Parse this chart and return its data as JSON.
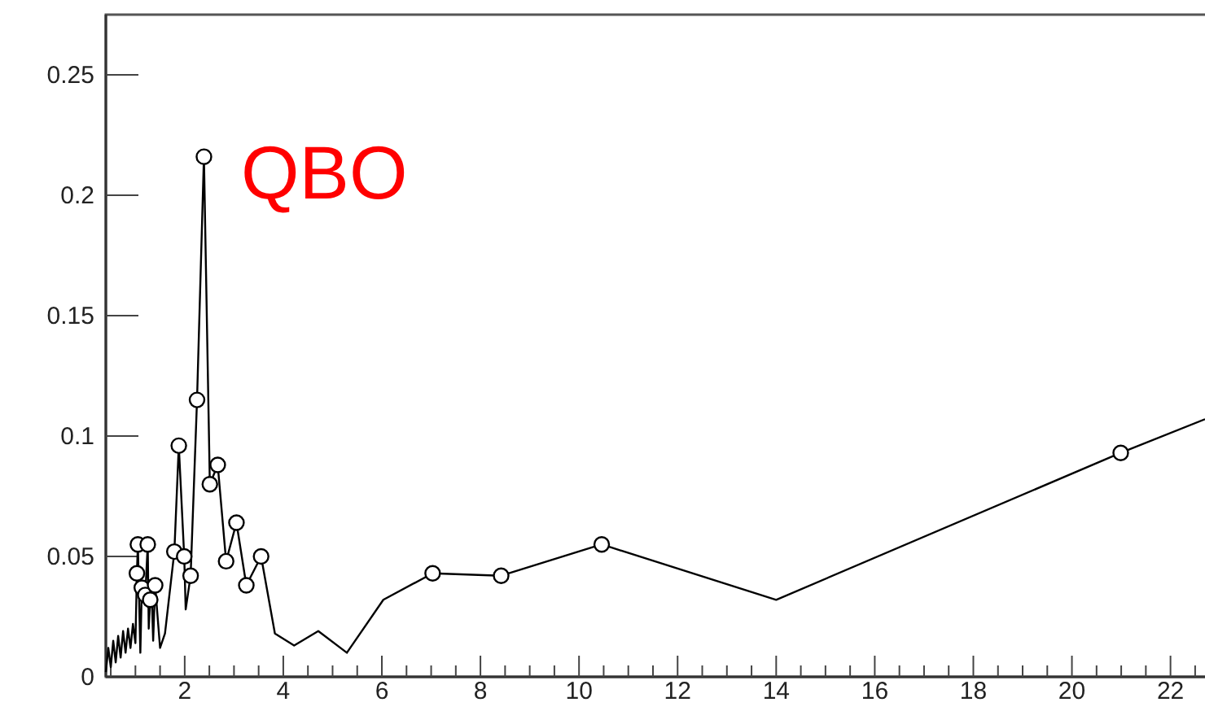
{
  "chart_data": {
    "type": "line",
    "annotations": [
      "QBO"
    ],
    "xlim": [
      0.4,
      22.7
    ],
    "ylim": [
      0,
      0.275
    ],
    "xticks": [
      {
        "value": 0.5,
        "label": null
      },
      {
        "value": 1,
        "label": null
      },
      {
        "value": 1.5,
        "label": null
      },
      2,
      {
        "value": 2.5,
        "label": null
      },
      {
        "value": 3,
        "label": null
      },
      {
        "value": 3.5,
        "label": null
      },
      4,
      {
        "value": 4.5,
        "label": null
      },
      {
        "value": 5,
        "label": null
      },
      {
        "value": 5.5,
        "label": null
      },
      6,
      {
        "value": 6.5,
        "label": null
      },
      {
        "value": 7,
        "label": null
      },
      {
        "value": 7.5,
        "label": null
      },
      8,
      {
        "value": 8.5,
        "label": null
      },
      {
        "value": 9,
        "label": null
      },
      {
        "value": 9.5,
        "label": null
      },
      10,
      {
        "value": 10.5,
        "label": null
      },
      {
        "value": 11,
        "label": null
      },
      {
        "value": 11.5,
        "label": null
      },
      12,
      {
        "value": 12.5,
        "label": null
      },
      {
        "value": 13,
        "label": null
      },
      {
        "value": 13.5,
        "label": null
      },
      14,
      {
        "value": 14.5,
        "label": null
      },
      {
        "value": 15,
        "label": null
      },
      {
        "value": 15.5,
        "label": null
      },
      16,
      {
        "value": 16.5,
        "label": null
      },
      {
        "value": 17,
        "label": null
      },
      {
        "value": 17.5,
        "label": null
      },
      18,
      {
        "value": 18.5,
        "label": null
      },
      {
        "value": 19,
        "label": null
      },
      {
        "value": 19.5,
        "label": null
      },
      20,
      {
        "value": 20.5,
        "label": null
      },
      {
        "value": 21,
        "label": null
      },
      {
        "value": 21.5,
        "label": null
      },
      22,
      {
        "value": 22.5,
        "label": null
      }
    ],
    "yticks": [
      0,
      0.05,
      0.1,
      0.15,
      0.2,
      0.25
    ],
    "grid": false,
    "series": [
      {
        "type": "line",
        "color": "#000000",
        "marker": "none",
        "x": [
          0.4,
          0.45,
          0.5,
          0.55,
          0.6,
          0.65,
          0.7,
          0.75,
          0.8,
          0.85,
          0.9,
          0.95,
          1.0,
          1.03,
          1.05,
          1.1,
          1.13,
          1.2,
          1.25,
          1.27,
          1.3,
          1.33,
          1.36,
          1.4,
          1.5,
          1.6,
          1.79,
          1.88,
          1.99,
          2.02,
          2.12,
          2.25,
          2.39,
          2.51,
          2.67,
          2.84,
          3.05,
          3.25,
          3.55,
          3.83,
          4.22,
          4.71,
          5.29,
          6.03,
          7.03,
          8.42,
          10.46,
          14,
          20.99,
          22.7
        ],
        "values": [
          0.002,
          0.012,
          0.004,
          0.015,
          0.006,
          0.017,
          0.008,
          0.019,
          0.01,
          0.02,
          0.012,
          0.022,
          0.014,
          0.043,
          0.055,
          0.01,
          0.037,
          0.034,
          0.055,
          0.02,
          0.032,
          0.035,
          0.015,
          0.038,
          0.012,
          0.018,
          0.052,
          0.096,
          0.05,
          0.028,
          0.042,
          0.115,
          0.216,
          0.08,
          0.088,
          0.048,
          0.064,
          0.038,
          0.05,
          0.018,
          0.013,
          0.019,
          0.01,
          0.032,
          0.043,
          0.042,
          0.055,
          0.032,
          0.093,
          0.107
        ]
      },
      {
        "type": "scatter",
        "color": "#000000",
        "marker": "circle",
        "x": [
          1.03,
          1.05,
          1.13,
          1.2,
          1.25,
          1.3,
          1.4,
          1.79,
          1.88,
          1.99,
          2.12,
          2.25,
          2.39,
          2.51,
          2.67,
          2.84,
          3.05,
          3.25,
          3.55,
          7.03,
          8.42,
          10.46,
          20.99
        ],
        "values": [
          0.043,
          0.055,
          0.037,
          0.034,
          0.055,
          0.032,
          0.038,
          0.052,
          0.096,
          0.05,
          0.042,
          0.115,
          0.216,
          0.08,
          0.088,
          0.048,
          0.064,
          0.038,
          0.05,
          0.043,
          0.042,
          0.055,
          0.093
        ]
      }
    ]
  }
}
